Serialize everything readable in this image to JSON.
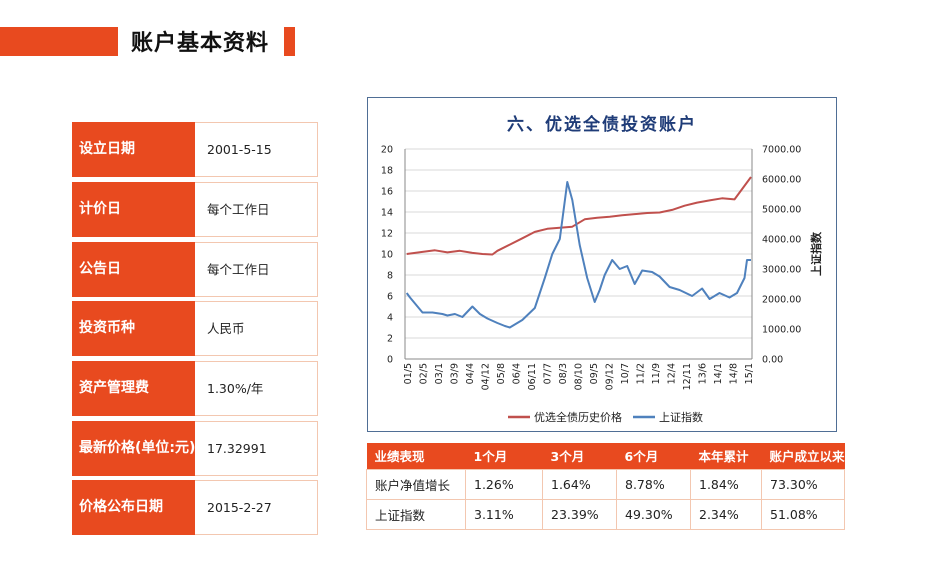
{
  "header": {
    "title": "账户基本资料"
  },
  "info": [
    {
      "label": "设立日期",
      "value": "2001-5-15"
    },
    {
      "label": "计价日",
      "value": "每个工作日"
    },
    {
      "label": "公告日",
      "value": "每个工作日"
    },
    {
      "label": "投资币种",
      "value": "人民币"
    },
    {
      "label": "资产管理费",
      "value": "1.30%/年"
    },
    {
      "label": "最新价格(单位:元)",
      "value": "17.32991"
    },
    {
      "label": "价格公布日期",
      "value": "2015-2-27"
    }
  ],
  "performance": {
    "headers": [
      "业绩表现",
      "1个月",
      "3个月",
      "6个月",
      "本年累计",
      "账户成立以来"
    ],
    "rows": [
      {
        "label": "账户净值增长",
        "values": [
          "1.26%",
          "1.64%",
          "8.78%",
          "1.84%",
          "73.30%"
        ]
      },
      {
        "label": "上证指数",
        "values": [
          "3.11%",
          "23.39%",
          "49.30%",
          "2.34%",
          "51.08%"
        ]
      }
    ]
  },
  "colors": {
    "accent": "#e84a1f",
    "series_price": "#c0504d",
    "series_index": "#4f81bd",
    "chart_title": "#1f3c78"
  },
  "chart_data": {
    "type": "line",
    "title": "六、优选全债投资账户",
    "ylabel": "",
    "y2label": "上证指数",
    "ylim": [
      0,
      20
    ],
    "y2lim": [
      0,
      7000
    ],
    "yticks": [
      "0",
      "2",
      "4",
      "6",
      "8",
      "10",
      "12",
      "14",
      "16",
      "18",
      "20"
    ],
    "y2ticks": [
      "0.00",
      "1000.00",
      "2000.00",
      "3000.00",
      "4000.00",
      "5000.00",
      "6000.00",
      "7000.00"
    ],
    "x_labels": [
      "01/5",
      "02/5",
      "03/1",
      "03/9",
      "04/4",
      "04/12",
      "05/8",
      "06/4",
      "06/11",
      "07/7",
      "08/3",
      "08/10",
      "09/5",
      "09/12",
      "10/7",
      "11/2",
      "11/9",
      "12/4",
      "12/11",
      "13/6",
      "14/1",
      "14/8",
      "15/1"
    ],
    "legend_position": "bottom",
    "grid": true,
    "series": [
      {
        "name": "优选全债历史价格",
        "axis": "left",
        "x": [
          2001.37,
          2002.0,
          2002.5,
          2003.0,
          2003.5,
          2004.0,
          2004.4,
          2004.8,
          2005.0,
          2005.5,
          2006.0,
          2006.5,
          2007.0,
          2007.5,
          2008.0,
          2008.5,
          2009.0,
          2009.5,
          2010.0,
          2010.5,
          2011.0,
          2011.5,
          2012.0,
          2012.5,
          2013.0,
          2013.5,
          2014.0,
          2014.5,
          2015.16
        ],
        "y": [
          10.0,
          10.2,
          10.35,
          10.15,
          10.3,
          10.1,
          10.0,
          9.95,
          10.3,
          10.9,
          11.5,
          12.1,
          12.4,
          12.5,
          12.6,
          13.3,
          13.45,
          13.55,
          13.7,
          13.8,
          13.9,
          13.95,
          14.2,
          14.6,
          14.9,
          15.1,
          15.3,
          15.2,
          17.33
        ]
      },
      {
        "name": "上证指数",
        "axis": "right",
        "x": [
          2001.37,
          2001.5,
          2001.8,
          2002.0,
          2002.4,
          2002.8,
          2003.0,
          2003.3,
          2003.6,
          2004.0,
          2004.3,
          2004.6,
          2005.0,
          2005.3,
          2005.5,
          2006.0,
          2006.5,
          2006.9,
          2007.2,
          2007.5,
          2007.8,
          2008.0,
          2008.3,
          2008.6,
          2008.9,
          2009.1,
          2009.3,
          2009.6,
          2009.9,
          2010.2,
          2010.5,
          2010.8,
          2011.2,
          2011.5,
          2011.9,
          2012.3,
          2012.8,
          2013.2,
          2013.5,
          2013.9,
          2014.3,
          2014.6,
          2014.9,
          2015.0,
          2015.16
        ],
        "y": [
          2200,
          2050,
          1750,
          1550,
          1550,
          1500,
          1450,
          1500,
          1400,
          1750,
          1500,
          1350,
          1200,
          1100,
          1050,
          1300,
          1700,
          2700,
          3500,
          4000,
          5900,
          5300,
          3800,
          2700,
          1900,
          2300,
          2800,
          3300,
          3000,
          3100,
          2500,
          2950,
          2900,
          2750,
          2400,
          2300,
          2100,
          2350,
          2000,
          2200,
          2050,
          2200,
          2700,
          3300,
          3300
        ]
      }
    ]
  }
}
